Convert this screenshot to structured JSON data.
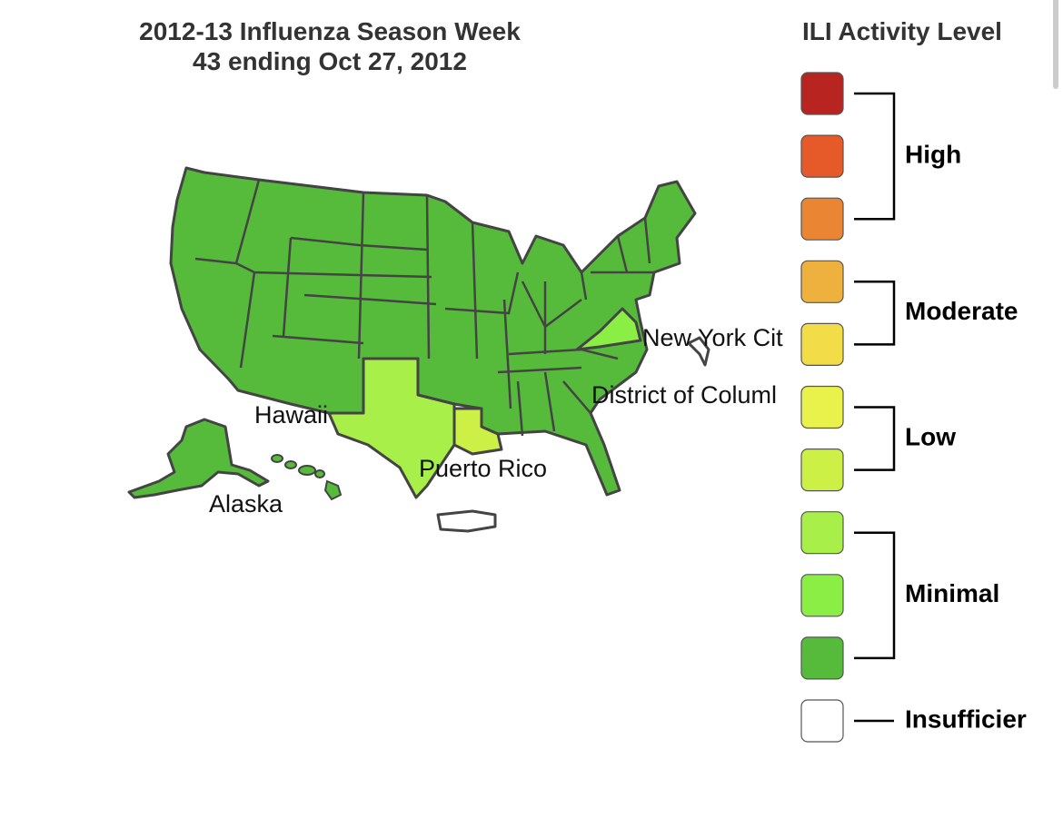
{
  "title": [
    "2012-13 Influenza Season Week",
    "43 ending Oct 27, 2012"
  ],
  "map_labels": [
    "New York Cit",
    "District of Columl",
    "Hawaii",
    "Puerto Rico",
    "Alaska"
  ],
  "legend": {
    "title": "ILI Activity Level",
    "groups": [
      {
        "label": "High",
        "colors": [
          "#b8241f",
          "#e65a2a",
          "#ea8633"
        ]
      },
      {
        "label": "Moderate",
        "colors": [
          "#efb13e",
          "#f2dd48"
        ]
      },
      {
        "label": "Low",
        "colors": [
          "#e8f24b",
          "#ccf046"
        ]
      },
      {
        "label": "Minimal",
        "colors": [
          "#a9ef49",
          "#8aee45",
          "#56bb3a"
        ]
      },
      {
        "label": "Insufficier",
        "colors": [
          "#ffffff"
        ]
      }
    ]
  }
}
